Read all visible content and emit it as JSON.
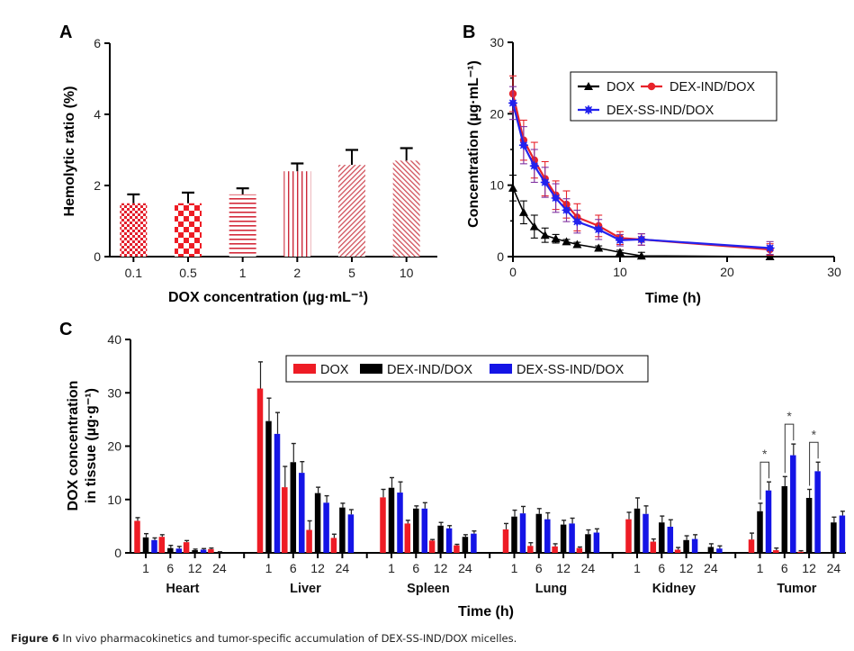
{
  "caption": {
    "label": "Figure 6",
    "text": " In vivo pharmacokinetics and tumor-specific accumulation of DEX-SS-IND/DOX micelles."
  },
  "colors": {
    "dox": "#ee1c25",
    "dex_ind": "#000000",
    "dex_ss": "#1414e6",
    "hatch_red": "#d9293a",
    "b_red": "#e8232b",
    "b_blue": "#2222ee",
    "b_purple": "#8030a0"
  },
  "chart_data": [
    {
      "panel": "A",
      "type": "bar",
      "title": "",
      "xlabel": "DOX concentration (µg·mL⁻¹)",
      "ylabel": "Hemolytic ratio (%)",
      "ylim": [
        0,
        6
      ],
      "yticks": [
        "0",
        "2",
        "4",
        "6"
      ],
      "categories": [
        "0.1",
        "0.5",
        "1",
        "2",
        "5",
        "10"
      ],
      "values": [
        1.5,
        1.5,
        1.75,
        2.4,
        2.58,
        2.7
      ],
      "error_upper": [
        1.75,
        1.8,
        1.92,
        2.62,
        3.0,
        3.05
      ],
      "patterns": [
        "fine-checker",
        "coarse-checker",
        "horizontal-lines",
        "vertical-lines",
        "diagonal-up",
        "diagonal-down"
      ],
      "grid": false
    },
    {
      "panel": "B",
      "type": "line",
      "title": "",
      "xlabel": "Time (h)",
      "ylabel": "Concentration (µg·mL⁻¹)",
      "xlim": [
        0,
        30
      ],
      "ylim": [
        0,
        30
      ],
      "xticks": [
        "0",
        "10",
        "20",
        "30"
      ],
      "yticks": [
        "0",
        "10",
        "20",
        "30"
      ],
      "x": [
        0,
        1,
        2,
        3,
        4,
        5,
        6,
        8,
        10,
        12,
        24
      ],
      "legend_position": "top-right",
      "grid": false,
      "series": [
        {
          "name": "DOX",
          "marker": "triangle",
          "values": [
            9.6,
            6.2,
            4.2,
            3.0,
            2.5,
            2.1,
            1.7,
            1.2,
            0.6,
            0.1,
            0.0
          ],
          "errors": [
            1.8,
            1.6,
            1.6,
            1.0,
            0.6,
            0.3,
            0.3,
            0.3,
            0.3,
            0.5,
            0.3
          ]
        },
        {
          "name": "DEX-IND/DOX",
          "marker": "circle",
          "values": [
            22.8,
            16.3,
            13.5,
            10.9,
            8.6,
            7.3,
            5.5,
            4.3,
            2.6,
            2.4,
            1.0
          ],
          "errors": [
            2.5,
            2.8,
            2.5,
            2.4,
            2.0,
            1.9,
            1.9,
            1.5,
            0.9,
            0.8,
            0.8
          ]
        },
        {
          "name": "DEX-SS-IND/DOX",
          "marker": "star",
          "values": [
            21.5,
            15.6,
            12.7,
            10.4,
            8.2,
            6.5,
            4.9,
            3.8,
            2.3,
            2.4,
            1.2
          ],
          "errors": [
            2.3,
            2.6,
            2.3,
            2.1,
            2.0,
            1.6,
            1.6,
            1.4,
            0.8,
            0.8,
            0.9
          ]
        }
      ]
    },
    {
      "panel": "C",
      "type": "bar",
      "title": "",
      "xlabel": "Time (h)",
      "ylabel": "DOX concentration in tissue (µg·g⁻¹)",
      "ylabel_line1": "DOX concentration",
      "ylabel_line2": "in tissue (µg·g⁻¹)",
      "ylim": [
        0,
        40
      ],
      "yticks": [
        "0",
        "10",
        "20",
        "30",
        "40"
      ],
      "timepoints": [
        "1",
        "6",
        "12",
        "24"
      ],
      "legend_position": "top-center",
      "grid": false,
      "series_names": [
        "DOX",
        "DEX-IND/DOX",
        "DEX-SS-IND/DOX"
      ],
      "groups": [
        {
          "organ": "Heart",
          "DOX": [
            6.0,
            3.0,
            2.0,
            0.7
          ],
          "DEX-IND/DOX": [
            2.9,
            0.9,
            0.5,
            0.1
          ],
          "DEX-SS-IND/DOX": [
            2.4,
            0.8,
            0.6,
            0.0
          ],
          "DOX_err": [
            0.6,
            0.4,
            0.3,
            0.2
          ],
          "DEX-IND/DOX_err": [
            0.7,
            0.5,
            0.2,
            0.1
          ],
          "DEX-SS-IND/DOX_err": [
            0.4,
            0.4,
            0.2,
            0.0
          ]
        },
        {
          "organ": "Liver",
          "DOX": [
            30.8,
            12.3,
            4.3,
            2.8
          ],
          "DEX-IND/DOX": [
            24.7,
            17.0,
            11.2,
            8.5
          ],
          "DEX-SS-IND/DOX": [
            22.3,
            15.0,
            9.4,
            7.2
          ],
          "DOX_err": [
            5.0,
            3.9,
            1.7,
            0.7
          ],
          "DEX-IND/DOX_err": [
            4.3,
            3.5,
            1.1,
            0.8
          ],
          "DEX-SS-IND/DOX_err": [
            4.0,
            2.1,
            1.3,
            0.9
          ]
        },
        {
          "organ": "Spleen",
          "DOX": [
            10.4,
            5.5,
            2.3,
            1.4
          ],
          "DEX-IND/DOX": [
            12.2,
            8.3,
            5.1,
            3.0
          ],
          "DEX-SS-IND/DOX": [
            11.3,
            8.3,
            4.6,
            3.6
          ],
          "DOX_err": [
            1.5,
            0.6,
            0.2,
            0.2
          ],
          "DEX-IND/DOX_err": [
            1.9,
            0.5,
            0.6,
            0.4
          ],
          "DEX-SS-IND/DOX_err": [
            2.0,
            1.1,
            0.5,
            0.5
          ]
        },
        {
          "organ": "Lung",
          "DOX": [
            4.4,
            1.3,
            1.2,
            0.9
          ],
          "DEX-IND/DOX": [
            6.8,
            7.3,
            5.3,
            3.5
          ],
          "DEX-SS-IND/DOX": [
            7.4,
            6.3,
            5.5,
            3.8
          ],
          "DOX_err": [
            1.1,
            0.6,
            0.5,
            0.2
          ],
          "DEX-IND/DOX_err": [
            1.2,
            1.0,
            0.8,
            0.8
          ],
          "DEX-SS-IND/DOX_err": [
            1.3,
            1.2,
            1.0,
            0.7
          ]
        },
        {
          "organ": "Kidney",
          "DOX": [
            6.3,
            2.1,
            0.6,
            0.0
          ],
          "DEX-IND/DOX": [
            8.3,
            5.7,
            2.4,
            1.1
          ],
          "DEX-SS-IND/DOX": [
            7.3,
            4.9,
            2.6,
            0.8
          ],
          "DOX_err": [
            1.3,
            0.5,
            0.4,
            0.0
          ],
          "DEX-IND/DOX_err": [
            2.0,
            1.2,
            0.8,
            0.6
          ],
          "DEX-SS-IND/DOX_err": [
            1.5,
            1.3,
            0.8,
            0.5
          ]
        },
        {
          "organ": "Tumor",
          "DOX": [
            2.5,
            0.5,
            0.2,
            0.0
          ],
          "DEX-IND/DOX": [
            7.8,
            12.5,
            10.3,
            5.7
          ],
          "DEX-SS-IND/DOX": [
            11.7,
            18.3,
            15.3,
            7.0
          ],
          "DOX_err": [
            1.2,
            0.4,
            0.2,
            0.0
          ],
          "DEX-IND/DOX_err": [
            1.5,
            1.8,
            1.6,
            1.0
          ],
          "DEX-SS-IND/DOX_err": [
            1.6,
            2.1,
            1.7,
            0.8
          ]
        }
      ],
      "annotations": [
        {
          "organ": "Tumor",
          "timepoint": "1",
          "text": "*",
          "compares": [
            "DEX-IND/DOX",
            "DEX-SS-IND/DOX"
          ]
        },
        {
          "organ": "Tumor",
          "timepoint": "6",
          "text": "*",
          "compares": [
            "DEX-IND/DOX",
            "DEX-SS-IND/DOX"
          ]
        },
        {
          "organ": "Tumor",
          "timepoint": "12",
          "text": "*",
          "compares": [
            "DEX-IND/DOX",
            "DEX-SS-IND/DOX"
          ]
        }
      ]
    }
  ]
}
